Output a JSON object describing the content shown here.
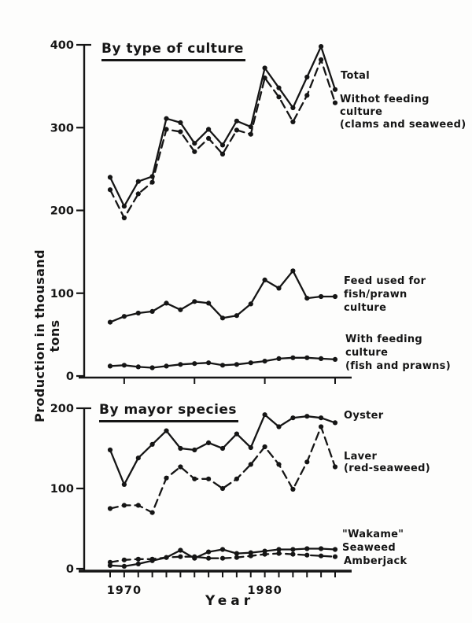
{
  "figure": {
    "background": "#fdfdfc",
    "ink": "#151515",
    "y_axis_label": "Production in thousand tons",
    "x_axis_label": "Year"
  },
  "chart_data": [
    {
      "type": "line",
      "panel": "top",
      "title": "By type of culture",
      "x": [
        1969,
        1970,
        1971,
        1972,
        1973,
        1974,
        1975,
        1976,
        1977,
        1978,
        1979,
        1980,
        1981,
        1982,
        1983,
        1984,
        1985
      ],
      "ylim": [
        0,
        400
      ],
      "yticks": [
        0,
        100,
        200,
        300,
        400
      ],
      "xticks": [
        1970,
        1975,
        1980,
        1985
      ],
      "xtick_labels": [],
      "grid": false,
      "series": [
        {
          "name": "Total",
          "line": "solid",
          "marker": "circle",
          "label_lines": [
            "Total"
          ],
          "values": [
            240,
            205,
            235,
            241,
            311,
            306,
            281,
            298,
            279,
            308,
            301,
            372,
            348,
            324,
            361,
            398,
            346
          ]
        },
        {
          "name": "Withot feeding culture (clams and seaweed)",
          "line": "dashed",
          "marker": "circle",
          "label_lines": [
            "Withot feeding",
            "culture",
            "(clams and seaweed)"
          ],
          "values": [
            225,
            191,
            220,
            234,
            298,
            295,
            271,
            287,
            268,
            297,
            292,
            360,
            337,
            307,
            339,
            382,
            330
          ]
        },
        {
          "name": "Feed used for fish/prawn culture",
          "line": "solid",
          "marker": "circle",
          "label_lines": [
            "Feed used for",
            "fish/prawn",
            "culture"
          ],
          "values": [
            65,
            72,
            76,
            78,
            88,
            80,
            90,
            88,
            70,
            73,
            87,
            116,
            106,
            127,
            94,
            96,
            96
          ]
        },
        {
          "name": "With feeding culture (fish and prawns)",
          "line": "solid",
          "marker": "circle",
          "label_lines": [
            "With feeding",
            "culture",
            "(fish and prawns)"
          ],
          "values": [
            12,
            13,
            11,
            10,
            12,
            14,
            15,
            16,
            13,
            14,
            16,
            18,
            21,
            22,
            22,
            21,
            20
          ]
        }
      ]
    },
    {
      "type": "line",
      "panel": "bottom",
      "title": "By mayor species",
      "x": [
        1969,
        1970,
        1971,
        1972,
        1973,
        1974,
        1975,
        1976,
        1977,
        1978,
        1979,
        1980,
        1981,
        1982,
        1983,
        1984,
        1985
      ],
      "ylim": [
        0,
        200
      ],
      "yticks": [
        0,
        100,
        200
      ],
      "xticks": [
        1969,
        1970,
        1971,
        1972,
        1973,
        1974,
        1975,
        1976,
        1977,
        1978,
        1979,
        1980,
        1981,
        1982,
        1983,
        1984,
        1985
      ],
      "xtick_labels": [
        {
          "x": 1970,
          "label": "1970"
        },
        {
          "x": 1980,
          "label": "1980"
        }
      ],
      "grid": false,
      "series": [
        {
          "name": "Oyster",
          "line": "solid",
          "marker": "circle",
          "label_lines": [
            "Oyster"
          ],
          "values": [
            148,
            105,
            138,
            155,
            172,
            150,
            148,
            157,
            150,
            168,
            151,
            192,
            177,
            188,
            190,
            188,
            182
          ]
        },
        {
          "name": "Laver (red-seaweed)",
          "line": "dashed",
          "marker": "circle",
          "label_lines": [
            "Laver",
            "(red-seaweed)"
          ],
          "values": [
            75,
            79,
            79,
            70,
            113,
            127,
            112,
            112,
            100,
            112,
            130,
            152,
            130,
            99,
            133,
            177,
            127
          ]
        },
        {
          "name": "\"Wakame\" Seaweed",
          "line": "solid",
          "marker": "circle",
          "label_lines": [
            "\"Wakame\"",
            "Seaweed"
          ],
          "values": [
            4,
            3,
            6,
            10,
            14,
            23,
            13,
            21,
            24,
            19,
            20,
            22,
            24,
            24,
            25,
            25,
            24
          ]
        },
        {
          "name": "Amberjack",
          "line": "dashed",
          "marker": "circle",
          "label_lines": [
            "Amberjack"
          ],
          "values": [
            8,
            11,
            12,
            12,
            14,
            15,
            15,
            13,
            13,
            14,
            16,
            18,
            19,
            18,
            17,
            16,
            15
          ]
        }
      ]
    }
  ]
}
